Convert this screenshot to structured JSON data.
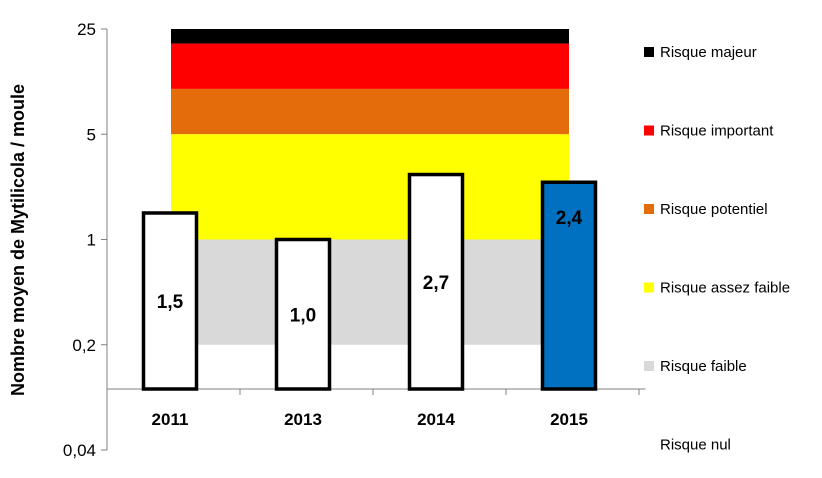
{
  "chart_data": {
    "type": "bar",
    "ylabel": "Nombre moyen de Mytilicola / moule",
    "y_scale": "log",
    "ylim": [
      0.04,
      25
    ],
    "yticks": [
      {
        "value": 0.04,
        "label": "0,04"
      },
      {
        "value": 0.2,
        "label": "0,2"
      },
      {
        "value": 1,
        "label": "1"
      },
      {
        "value": 5,
        "label": "5"
      },
      {
        "value": 25,
        "label": "25"
      }
    ],
    "categories": [
      "2011",
      "2013",
      "2014",
      "2015"
    ],
    "values": [
      1.5,
      1.0,
      2.7,
      2.4
    ],
    "value_labels": [
      "1,5",
      "1,0",
      "2,7",
      "2,4"
    ],
    "bar_colors": [
      "#ffffff",
      "#ffffff",
      "#ffffff",
      "#0070c0"
    ],
    "risk_bands": [
      {
        "name": "Risque majeur",
        "from": 20,
        "to": 25,
        "color": "#000000"
      },
      {
        "name": "Risque important",
        "from": 10,
        "to": 20,
        "color": "#ff0000"
      },
      {
        "name": "Risque potentiel",
        "from": 5,
        "to": 10,
        "color": "#e46c0a"
      },
      {
        "name": "Risque assez faible",
        "from": 1,
        "to": 5,
        "color": "#ffff00"
      },
      {
        "name": "Risque faible",
        "from": 0.2,
        "to": 1,
        "color": "#d9d9d9"
      },
      {
        "name": "Risque nul",
        "from": 0.04,
        "to": 0.2,
        "color": "#ffffff"
      }
    ],
    "legend_position": "right"
  }
}
